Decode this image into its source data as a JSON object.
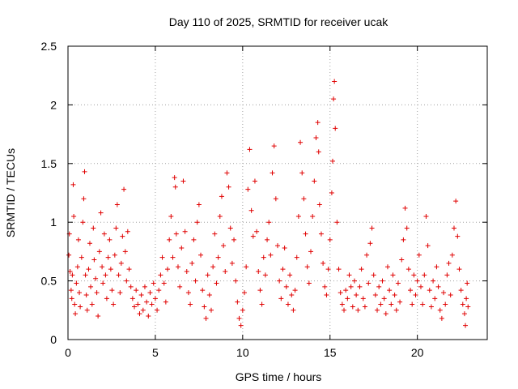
{
  "chart_data": {
    "type": "scatter",
    "title": "Day 110 of 2025, SRMTID for receiver ucak",
    "xlabel": "GPS time / hours",
    "ylabel": "SRMTID / TECUs",
    "xlim": [
      0,
      24
    ],
    "ylim": [
      0,
      2.5
    ],
    "xticks": [
      0,
      5,
      10,
      15,
      20
    ],
    "xtick_labels": [
      "0",
      "5",
      "10",
      "15",
      "20"
    ],
    "yticks": [
      0,
      0.5,
      1,
      1.5,
      2,
      2.5
    ],
    "ytick_labels": [
      "0",
      "0.5",
      "1",
      "1.5",
      "2",
      "2.5"
    ],
    "grid": true,
    "marker": "+",
    "marker_color": "#e00000",
    "series": [
      {
        "name": "SRMTID",
        "points": [
          [
            0.05,
            0.72
          ],
          [
            0.08,
            0.9
          ],
          [
            0.12,
            0.58
          ],
          [
            0.18,
            0.42
          ],
          [
            0.22,
            0.35
          ],
          [
            0.25,
            0.55
          ],
          [
            0.3,
            1.32
          ],
          [
            0.33,
            1.05
          ],
          [
            0.38,
            0.3
          ],
          [
            0.42,
            0.22
          ],
          [
            0.48,
            0.48
          ],
          [
            0.55,
            0.62
          ],
          [
            0.6,
            0.85
          ],
          [
            0.65,
            0.4
          ],
          [
            0.7,
            0.28
          ],
          [
            0.78,
            0.7
          ],
          [
            0.85,
            1.0
          ],
          [
            0.9,
            1.2
          ],
          [
            0.95,
            1.43
          ],
          [
            1.0,
            0.55
          ],
          [
            1.05,
            0.38
          ],
          [
            1.1,
            0.25
          ],
          [
            1.18,
            0.6
          ],
          [
            1.25,
            0.82
          ],
          [
            1.3,
            0.45
          ],
          [
            1.38,
            0.3
          ],
          [
            1.45,
            0.95
          ],
          [
            1.5,
            0.68
          ],
          [
            1.58,
            0.52
          ],
          [
            1.65,
            0.4
          ],
          [
            1.72,
            0.2
          ],
          [
            1.8,
            0.75
          ],
          [
            1.88,
            1.08
          ],
          [
            1.95,
            0.62
          ],
          [
            2.0,
            0.48
          ],
          [
            2.08,
            0.9
          ],
          [
            2.15,
            0.55
          ],
          [
            2.22,
            0.35
          ],
          [
            2.3,
            0.7
          ],
          [
            2.38,
            0.85
          ],
          [
            2.45,
            0.6
          ],
          [
            2.52,
            0.42
          ],
          [
            2.6,
            0.3
          ],
          [
            2.68,
            0.72
          ],
          [
            2.75,
            0.95
          ],
          [
            2.82,
            1.15
          ],
          [
            2.9,
            0.55
          ],
          [
            2.98,
            0.4
          ],
          [
            3.05,
            0.65
          ],
          [
            3.12,
            0.88
          ],
          [
            3.2,
            1.28
          ],
          [
            3.28,
            0.75
          ],
          [
            3.35,
            0.5
          ],
          [
            3.42,
            0.92
          ],
          [
            3.5,
            0.6
          ],
          [
            3.6,
            0.45
          ],
          [
            3.7,
            0.35
          ],
          [
            3.8,
            0.28
          ],
          [
            3.9,
            0.42
          ],
          [
            4.0,
            0.3
          ],
          [
            4.1,
            0.22
          ],
          [
            4.2,
            0.38
          ],
          [
            4.3,
            0.25
          ],
          [
            4.4,
            0.45
          ],
          [
            4.5,
            0.32
          ],
          [
            4.6,
            0.2
          ],
          [
            4.7,
            0.4
          ],
          [
            4.8,
            0.3
          ],
          [
            4.9,
            0.48
          ],
          [
            5.0,
            0.35
          ],
          [
            5.1,
            0.25
          ],
          [
            5.2,
            0.42
          ],
          [
            5.3,
            0.55
          ],
          [
            5.4,
            0.7
          ],
          [
            5.5,
            0.48
          ],
          [
            5.6,
            0.32
          ],
          [
            5.7,
            0.6
          ],
          [
            5.8,
            0.85
          ],
          [
            5.9,
            1.05
          ],
          [
            6.0,
            0.7
          ],
          [
            6.1,
            1.38
          ],
          [
            6.15,
            1.3
          ],
          [
            6.2,
            0.9
          ],
          [
            6.3,
            0.62
          ],
          [
            6.4,
            0.45
          ],
          [
            6.5,
            0.78
          ],
          [
            6.6,
            1.35
          ],
          [
            6.7,
            0.92
          ],
          [
            6.8,
            0.58
          ],
          [
            6.9,
            0.4
          ],
          [
            7.0,
            0.3
          ],
          [
            7.1,
            0.65
          ],
          [
            7.2,
            0.85
          ],
          [
            7.3,
            0.5
          ],
          [
            7.4,
            1.0
          ],
          [
            7.5,
            1.15
          ],
          [
            7.6,
            0.72
          ],
          [
            7.7,
            0.42
          ],
          [
            7.8,
            0.28
          ],
          [
            7.9,
            0.18
          ],
          [
            8.0,
            0.55
          ],
          [
            8.1,
            0.38
          ],
          [
            8.2,
            0.25
          ],
          [
            8.3,
            0.62
          ],
          [
            8.4,
            0.9
          ],
          [
            8.5,
            0.48
          ],
          [
            8.6,
            0.7
          ],
          [
            8.7,
            1.05
          ],
          [
            8.8,
            1.22
          ],
          [
            8.9,
            0.8
          ],
          [
            9.0,
            0.58
          ],
          [
            9.1,
            1.42
          ],
          [
            9.2,
            1.3
          ],
          [
            9.3,
            0.95
          ],
          [
            9.4,
            0.65
          ],
          [
            9.5,
            0.85
          ],
          [
            9.6,
            0.5
          ],
          [
            9.7,
            0.32
          ],
          [
            9.8,
            0.18
          ],
          [
            9.9,
            0.12
          ],
          [
            10.0,
            0.25
          ],
          [
            10.1,
            0.4
          ],
          [
            10.2,
            0.62
          ],
          [
            10.3,
            1.28
          ],
          [
            10.4,
            1.62
          ],
          [
            10.5,
            1.1
          ],
          [
            10.6,
            0.88
          ],
          [
            10.7,
            1.35
          ],
          [
            10.8,
            0.92
          ],
          [
            10.9,
            0.58
          ],
          [
            11.0,
            0.42
          ],
          [
            11.1,
            0.3
          ],
          [
            11.2,
            0.7
          ],
          [
            11.3,
            0.55
          ],
          [
            11.4,
            0.85
          ],
          [
            11.5,
            1.0
          ],
          [
            11.6,
            0.72
          ],
          [
            11.7,
            1.42
          ],
          [
            11.8,
            1.65
          ],
          [
            11.9,
            1.2
          ],
          [
            12.0,
            0.8
          ],
          [
            12.1,
            0.5
          ],
          [
            12.2,
            0.35
          ],
          [
            12.3,
            0.6
          ],
          [
            12.4,
            0.78
          ],
          [
            12.5,
            0.45
          ],
          [
            12.6,
            0.3
          ],
          [
            12.7,
            0.55
          ],
          [
            12.8,
            0.38
          ],
          [
            12.9,
            0.25
          ],
          [
            13.0,
            0.42
          ],
          [
            13.1,
            0.7
          ],
          [
            13.2,
            1.05
          ],
          [
            13.3,
            1.68
          ],
          [
            13.4,
            1.42
          ],
          [
            13.5,
            1.2
          ],
          [
            13.6,
            0.9
          ],
          [
            13.7,
            0.62
          ],
          [
            13.8,
            0.48
          ],
          [
            13.9,
            0.75
          ],
          [
            14.0,
            1.05
          ],
          [
            14.1,
            1.35
          ],
          [
            14.2,
            1.72
          ],
          [
            14.3,
            1.85
          ],
          [
            14.35,
            1.6
          ],
          [
            14.4,
            1.15
          ],
          [
            14.5,
            0.9
          ],
          [
            14.6,
            0.65
          ],
          [
            14.7,
            0.45
          ],
          [
            14.8,
            0.38
          ],
          [
            14.9,
            0.6
          ],
          [
            15.0,
            0.85
          ],
          [
            15.1,
            1.25
          ],
          [
            15.15,
            1.52
          ],
          [
            15.2,
            2.05
          ],
          [
            15.25,
            2.2
          ],
          [
            15.3,
            1.8
          ],
          [
            15.4,
            1.0
          ],
          [
            15.5,
            0.6
          ],
          [
            15.6,
            0.4
          ],
          [
            15.7,
            0.3
          ],
          [
            15.8,
            0.25
          ],
          [
            15.9,
            0.42
          ],
          [
            16.0,
            0.35
          ],
          [
            16.1,
            0.55
          ],
          [
            16.2,
            0.45
          ],
          [
            16.3,
            0.28
          ],
          [
            16.4,
            0.5
          ],
          [
            16.5,
            0.38
          ],
          [
            16.6,
            0.25
          ],
          [
            16.7,
            0.45
          ],
          [
            16.8,
            0.6
          ],
          [
            16.9,
            0.35
          ],
          [
            17.0,
            0.28
          ],
          [
            17.1,
            0.72
          ],
          [
            17.2,
            0.48
          ],
          [
            17.3,
            0.82
          ],
          [
            17.4,
            0.95
          ],
          [
            17.5,
            0.55
          ],
          [
            17.6,
            0.38
          ],
          [
            17.7,
            0.25
          ],
          [
            17.8,
            0.45
          ],
          [
            17.9,
            0.3
          ],
          [
            18.0,
            0.5
          ],
          [
            18.1,
            0.35
          ],
          [
            18.2,
            0.22
          ],
          [
            18.3,
            0.62
          ],
          [
            18.4,
            0.42
          ],
          [
            18.5,
            0.3
          ],
          [
            18.6,
            0.55
          ],
          [
            18.7,
            0.38
          ],
          [
            18.8,
            0.25
          ],
          [
            18.9,
            0.48
          ],
          [
            19.0,
            0.32
          ],
          [
            19.1,
            0.68
          ],
          [
            19.2,
            0.85
          ],
          [
            19.3,
            1.12
          ],
          [
            19.4,
            0.95
          ],
          [
            19.5,
            0.6
          ],
          [
            19.6,
            0.42
          ],
          [
            19.7,
            0.3
          ],
          [
            19.8,
            0.55
          ],
          [
            19.9,
            0.38
          ],
          [
            20.0,
            0.5
          ],
          [
            20.1,
            0.72
          ],
          [
            20.2,
            0.45
          ],
          [
            20.3,
            0.3
          ],
          [
            20.4,
            0.55
          ],
          [
            20.5,
            1.05
          ],
          [
            20.6,
            0.8
          ],
          [
            20.7,
            0.42
          ],
          [
            20.8,
            0.28
          ],
          [
            20.9,
            0.5
          ],
          [
            21.0,
            0.35
          ],
          [
            21.1,
            0.62
          ],
          [
            21.2,
            0.45
          ],
          [
            21.3,
            0.25
          ],
          [
            21.4,
            0.18
          ],
          [
            21.5,
            0.4
          ],
          [
            21.6,
            0.3
          ],
          [
            21.7,
            0.55
          ],
          [
            21.8,
            0.65
          ],
          [
            21.9,
            0.38
          ],
          [
            22.0,
            0.72
          ],
          [
            22.1,
            0.95
          ],
          [
            22.2,
            1.18
          ],
          [
            22.3,
            0.88
          ],
          [
            22.4,
            0.6
          ],
          [
            22.5,
            0.42
          ],
          [
            22.6,
            0.3
          ],
          [
            22.7,
            0.22
          ],
          [
            22.75,
            0.12
          ],
          [
            22.8,
            0.35
          ],
          [
            22.85,
            0.48
          ],
          [
            22.9,
            0.28
          ]
        ]
      }
    ]
  }
}
